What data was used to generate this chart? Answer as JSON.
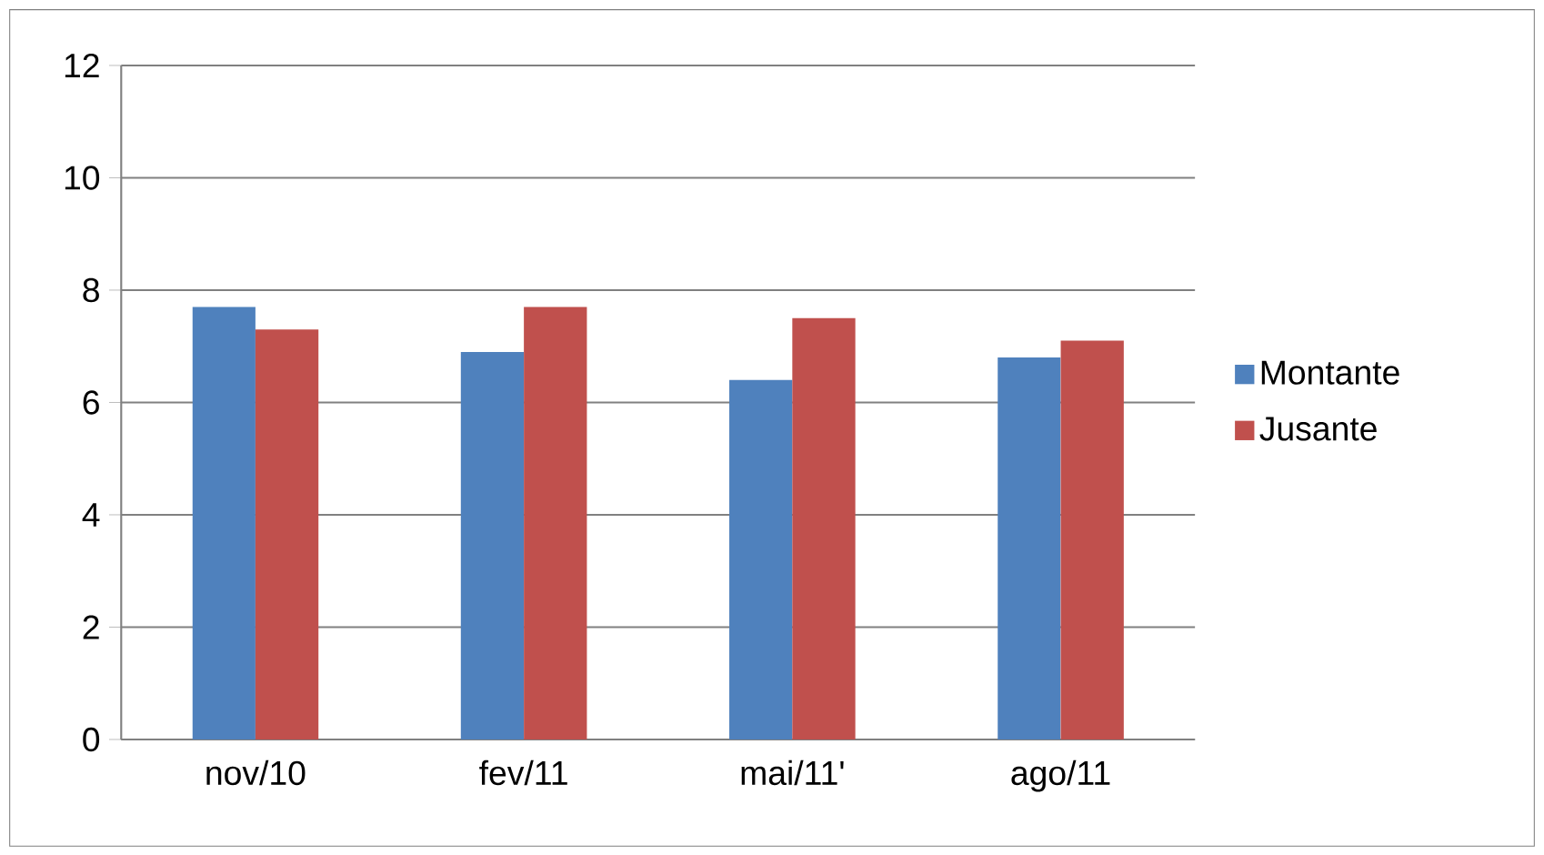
{
  "chart_data": {
    "type": "bar",
    "categories": [
      "nov/10",
      "fev/11",
      "mai/11'",
      "ago/11"
    ],
    "series": [
      {
        "name": "Montante",
        "color": "#4f81bd",
        "values": [
          7.7,
          6.9,
          6.4,
          6.8
        ]
      },
      {
        "name": "Jusante",
        "color": "#c0504d",
        "values": [
          7.3,
          7.7,
          7.5,
          7.1
        ]
      }
    ],
    "ylim": [
      0,
      12
    ],
    "yticks": [
      0,
      2,
      4,
      6,
      8,
      10,
      12
    ],
    "grid": "y",
    "legend": "right"
  }
}
